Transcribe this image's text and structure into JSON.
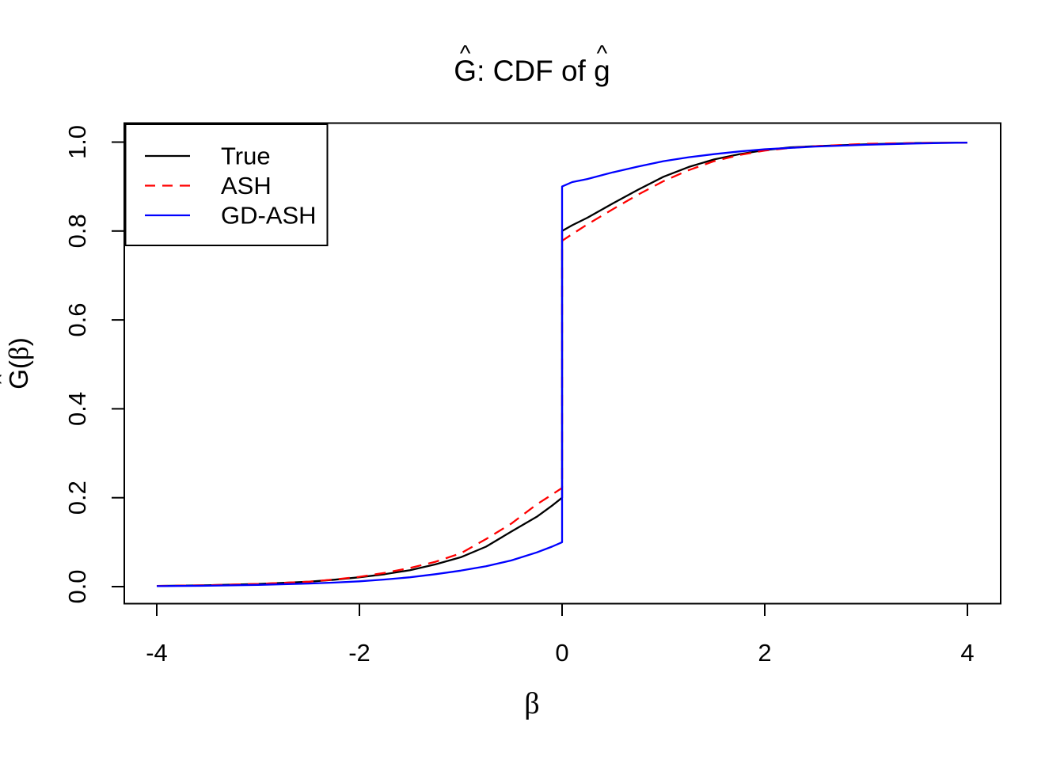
{
  "title": {
    "g1": "G",
    "hat": "^",
    "mid": ": CDF of ",
    "g2": "g",
    "full_text": "Ĝ: CDF of ĝ"
  },
  "x_axis": {
    "label_beta": "β"
  },
  "y_axis": {
    "label_g": "G",
    "hat": "^",
    "paren_open": "(",
    "label_beta": "β",
    "paren_close": ")"
  },
  "chart_data": {
    "type": "line",
    "title": "Ĝ: CDF of ĝ",
    "xlabel": "β",
    "ylabel": "Ĝ(β)",
    "xlim": [
      -4,
      4
    ],
    "ylim": [
      0,
      1
    ],
    "x_ticks": [
      -4,
      -2,
      0,
      2,
      4
    ],
    "y_ticks": [
      0.0,
      0.2,
      0.4,
      0.6,
      0.8,
      1.0
    ],
    "x_tick_labels": [
      "-4",
      "-2",
      "0",
      "2",
      "4"
    ],
    "y_tick_labels": [
      "0.0",
      "0.2",
      "0.4",
      "0.6",
      "0.8",
      "1.0"
    ],
    "grid": "off",
    "legend_position": "top-left",
    "jump_location": 0,
    "series": [
      {
        "name": "True",
        "color": "#000000",
        "line_style": "solid",
        "jump": [
          0.2,
          0.8
        ],
        "points": [
          [
            -4,
            0.0015
          ],
          [
            -3.5,
            0.003
          ],
          [
            -3,
            0.006
          ],
          [
            -2.5,
            0.011
          ],
          [
            -2.25,
            0.0155
          ],
          [
            -2,
            0.021
          ],
          [
            -1.75,
            0.028
          ],
          [
            -1.5,
            0.037
          ],
          [
            -1.25,
            0.05
          ],
          [
            -1,
            0.066
          ],
          [
            -0.75,
            0.09
          ],
          [
            -0.5,
            0.124
          ],
          [
            -0.25,
            0.157
          ],
          [
            -0.1,
            0.182
          ],
          [
            0,
            0.2
          ],
          [
            0,
            0.8
          ],
          [
            0.1,
            0.813
          ],
          [
            0.25,
            0.83
          ],
          [
            0.5,
            0.862
          ],
          [
            0.75,
            0.893
          ],
          [
            1,
            0.922
          ],
          [
            1.25,
            0.944
          ],
          [
            1.5,
            0.961
          ],
          [
            1.75,
            0.973
          ],
          [
            2,
            0.982
          ],
          [
            2.25,
            0.988
          ],
          [
            2.5,
            0.991
          ],
          [
            3,
            0.995
          ],
          [
            3.5,
            0.998
          ],
          [
            4,
            0.999
          ]
        ]
      },
      {
        "name": "ASH",
        "color": "#FF0000",
        "line_style": "dashed",
        "jump": [
          0.222,
          0.778
        ],
        "points": [
          [
            -4,
            0.0015
          ],
          [
            -3.5,
            0.003
          ],
          [
            -3,
            0.006
          ],
          [
            -2.5,
            0.011
          ],
          [
            -2.25,
            0.016
          ],
          [
            -2,
            0.022
          ],
          [
            -1.75,
            0.031
          ],
          [
            -1.5,
            0.042
          ],
          [
            -1.25,
            0.056
          ],
          [
            -1,
            0.075
          ],
          [
            -0.75,
            0.107
          ],
          [
            -0.5,
            0.142
          ],
          [
            -0.25,
            0.185
          ],
          [
            -0.1,
            0.207
          ],
          [
            0,
            0.222
          ],
          [
            0,
            0.778
          ],
          [
            0.1,
            0.793
          ],
          [
            0.25,
            0.815
          ],
          [
            0.5,
            0.849
          ],
          [
            0.75,
            0.882
          ],
          [
            1,
            0.912
          ],
          [
            1.25,
            0.937
          ],
          [
            1.5,
            0.957
          ],
          [
            1.75,
            0.971
          ],
          [
            2,
            0.981
          ],
          [
            2.25,
            0.987
          ],
          [
            2.5,
            0.991
          ],
          [
            3,
            0.996
          ],
          [
            3.5,
            0.998
          ],
          [
            4,
            0.999
          ]
        ]
      },
      {
        "name": "GD-ASH",
        "color": "#0000FF",
        "line_style": "solid",
        "jump": [
          0.1,
          0.9
        ],
        "points": [
          [
            -4,
            0.001
          ],
          [
            -3.5,
            0.002
          ],
          [
            -3,
            0.004
          ],
          [
            -2.5,
            0.007
          ],
          [
            -2.25,
            0.009
          ],
          [
            -2,
            0.012
          ],
          [
            -1.75,
            0.016
          ],
          [
            -1.5,
            0.021
          ],
          [
            -1.25,
            0.028
          ],
          [
            -1,
            0.036
          ],
          [
            -0.75,
            0.046
          ],
          [
            -0.5,
            0.059
          ],
          [
            -0.25,
            0.077
          ],
          [
            -0.1,
            0.09
          ],
          [
            0,
            0.1
          ],
          [
            0,
            0.9
          ],
          [
            0.1,
            0.91
          ],
          [
            0.25,
            0.917
          ],
          [
            0.5,
            0.932
          ],
          [
            0.75,
            0.945
          ],
          [
            1,
            0.957
          ],
          [
            1.25,
            0.966
          ],
          [
            1.5,
            0.973
          ],
          [
            1.75,
            0.979
          ],
          [
            2,
            0.984
          ],
          [
            2.25,
            0.987
          ],
          [
            2.5,
            0.99
          ],
          [
            3,
            0.994
          ],
          [
            3.5,
            0.997
          ],
          [
            4,
            0.999
          ]
        ]
      }
    ]
  }
}
